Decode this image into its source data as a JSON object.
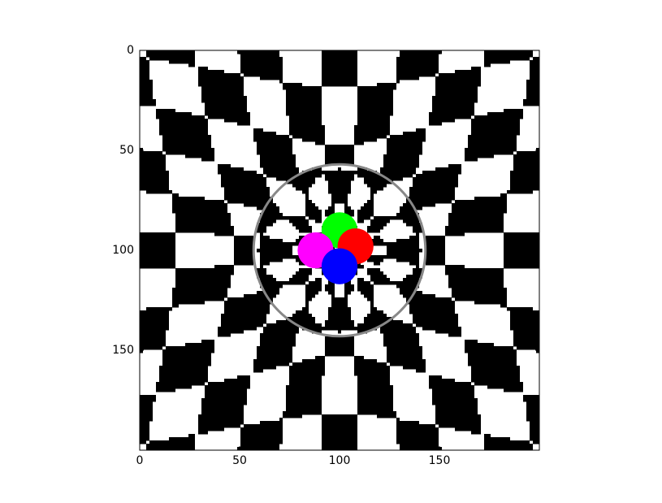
{
  "chart_data": {
    "type": "image",
    "xlim": [
      0,
      200
    ],
    "ylim": [
      200,
      0
    ],
    "xticks": [
      0,
      50,
      100,
      150
    ],
    "yticks": [
      0,
      50,
      100,
      150
    ]
  }
}
